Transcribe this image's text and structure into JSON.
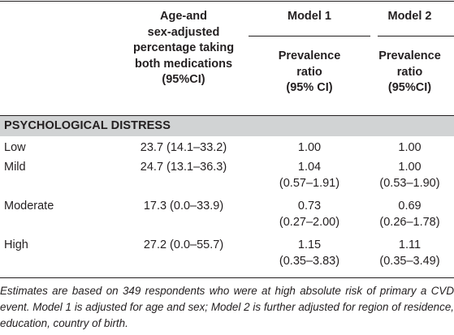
{
  "table": {
    "headers": {
      "col1_lines": [
        "Age-and",
        "sex-adjusted",
        "percentage taking",
        "both medications",
        "(95%CI)"
      ],
      "model1": {
        "title": "Model 1",
        "sub_lines": [
          "Prevalence",
          "ratio",
          "(95% CI)"
        ]
      },
      "model2": {
        "title": "Model 2",
        "sub_lines": [
          "Prevalence",
          "ratio",
          "(95%CI)"
        ]
      }
    },
    "section_label": "PSYCHOLOGICAL DISTRESS",
    "rows": [
      {
        "label": "Low",
        "pct": "23.7 (14.1–33.2)",
        "model1_value": "1.00",
        "model1_ci": "",
        "model2_value": "1.00",
        "model2_ci": ""
      },
      {
        "label": "Mild",
        "pct": "24.7 (13.1–36.3)",
        "model1_value": "1.04",
        "model1_ci": "(0.57–1.91)",
        "model2_value": "1.00",
        "model2_ci": "(0.53–1.90)"
      },
      {
        "label": "Moderate",
        "pct": "17.3 (0.0–33.9)",
        "model1_value": "0.73",
        "model1_ci": "(0.27–2.00)",
        "model2_value": "0.69",
        "model2_ci": "(0.26–1.78)"
      },
      {
        "label": "High",
        "pct": "27.2 (0.0–55.7)",
        "model1_value": "1.15",
        "model1_ci": "(0.35–3.83)",
        "model2_value": "1.11",
        "model2_ci": "(0.35–3.49)"
      }
    ]
  },
  "footnote": "Estimates are based on 349 respondents who were at high absolute risk of primary a CVD event. Model 1 is adjusted for age and sex; Model 2 is further adjusted for region of residence, education, country of birth."
}
